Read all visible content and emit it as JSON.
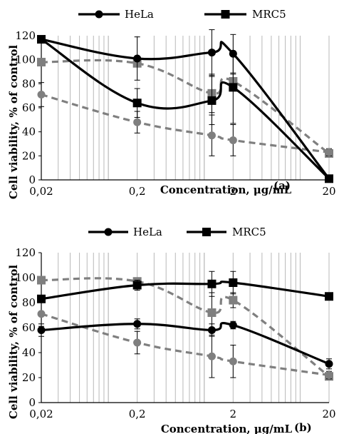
{
  "chart_data": [
    {
      "type": "line",
      "panel_label": "(a)",
      "xlabel": "Concentration, μg/mL",
      "ylabel": "Cell viability, % of control",
      "x_scale": "log",
      "xlim": [
        0.02,
        20
      ],
      "ylim": [
        0,
        120
      ],
      "x_ticks": [
        0.02,
        0.2,
        2,
        20
      ],
      "x_tick_labels": [
        "0,02",
        "0,2",
        "2",
        "20"
      ],
      "y_ticks": [
        0,
        20,
        40,
        60,
        80,
        100,
        120
      ],
      "y_tick_labels": [
        "0",
        "20",
        "40",
        "60",
        "80",
        "100",
        "120"
      ],
      "grid": "vertical log gridlines",
      "legend": [
        "HeLa",
        "MRC5"
      ],
      "legend_placement": "top",
      "series": [
        {
          "name": "HeLa",
          "marker": "circle",
          "color": "#000000",
          "dash": false,
          "x": [
            0.02,
            0.2,
            1.2,
            2,
            20
          ],
          "y": [
            117,
            101,
            106,
            105,
            1
          ],
          "err": [
            0,
            18,
            19,
            16,
            0
          ]
        },
        {
          "name": "MRC5",
          "marker": "square",
          "color": "#000000",
          "dash": false,
          "x": [
            0.02,
            0.2,
            1.2,
            2,
            20
          ],
          "y": [
            117,
            64,
            66,
            77,
            1
          ],
          "err": [
            0,
            12,
            20,
            30,
            0
          ]
        },
        {
          "marker": "square",
          "color": "#7f7f7f",
          "dash": true,
          "x": [
            0.02,
            0.2,
            1.2,
            2,
            20
          ],
          "y": [
            98,
            97,
            72,
            82,
            22
          ],
          "err": [
            0,
            0,
            16,
            6,
            3
          ]
        },
        {
          "marker": "circle",
          "color": "#7f7f7f",
          "dash": true,
          "x": [
            0.02,
            0.2,
            1.2,
            2,
            20
          ],
          "y": [
            71,
            48,
            37,
            33,
            23
          ],
          "err": [
            10,
            9,
            17,
            13,
            3
          ]
        }
      ]
    },
    {
      "type": "line",
      "panel_label": "(b)",
      "xlabel": "Concentration, μg/mL",
      "ylabel": "Cell viability, % of control",
      "x_scale": "log",
      "xlim": [
        0.02,
        20
      ],
      "ylim": [
        0,
        120
      ],
      "x_ticks": [
        0.02,
        0.2,
        2,
        20
      ],
      "x_tick_labels": [
        "0,02",
        "0,2",
        "2",
        "20"
      ],
      "y_ticks": [
        0,
        20,
        40,
        60,
        80,
        100,
        120
      ],
      "y_tick_labels": [
        "0",
        "20",
        "40",
        "60",
        "80",
        "100",
        "120"
      ],
      "grid": "vertical log gridlines",
      "legend": [
        "HeLa",
        "MRC5"
      ],
      "legend_placement": "top",
      "series": [
        {
          "name": "HeLa",
          "marker": "circle",
          "color": "#000000",
          "dash": false,
          "x": [
            0.02,
            0.2,
            1.2,
            2,
            20
          ],
          "y": [
            58,
            63,
            58,
            62,
            31
          ],
          "err": [
            5,
            4,
            5,
            3,
            4
          ]
        },
        {
          "name": "MRC5",
          "marker": "square",
          "color": "#000000",
          "dash": false,
          "x": [
            0.02,
            0.2,
            1.2,
            2,
            20
          ],
          "y": [
            83,
            94,
            95,
            96,
            85
          ],
          "err": [
            0,
            4,
            10,
            9,
            3
          ]
        },
        {
          "marker": "square",
          "color": "#7f7f7f",
          "dash": true,
          "x": [
            0.02,
            0.2,
            1.2,
            2,
            20
          ],
          "y": [
            98,
            97,
            72,
            82,
            21
          ],
          "err": [
            0,
            0,
            16,
            6,
            3
          ]
        },
        {
          "marker": "circle",
          "color": "#7f7f7f",
          "dash": true,
          "x": [
            0.02,
            0.2,
            1.2,
            2,
            20
          ],
          "y": [
            71,
            48,
            37,
            33,
            22
          ],
          "err": [
            10,
            9,
            17,
            13,
            3
          ]
        }
      ]
    }
  ]
}
